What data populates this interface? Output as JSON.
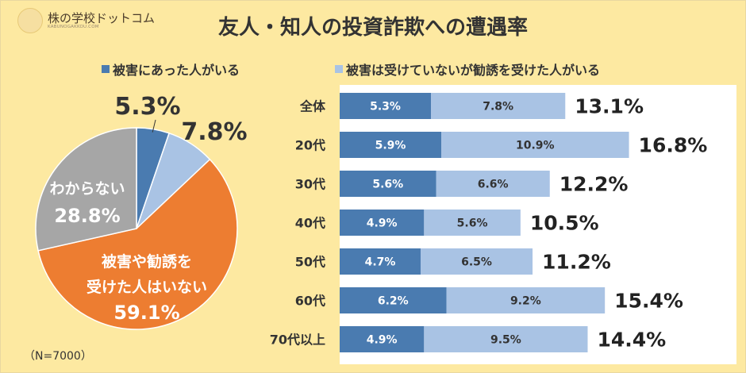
{
  "header": {
    "logo_text": "株の学校ドットコム",
    "logo_sub": "KABUNOGAKKOU.COM",
    "title": "友人・知人の投資詐欺への遭遇率"
  },
  "legend": {
    "victim": "被害にあった人がいる",
    "solicited": "被害は受けていないが勧誘を受けた人がいる"
  },
  "colors": {
    "victim": "#4a7bb0",
    "solicited": "#a9c3e4",
    "none": "#ed7d31",
    "unknown": "#a6a6a6",
    "background": "#fde9a1"
  },
  "note": "（N=7000）",
  "chart_data": [
    {
      "type": "pie",
      "slices": [
        {
          "label": "",
          "value": 5.3,
          "display": "5.3%",
          "color": "#4a7bb0"
        },
        {
          "label": "",
          "value": 7.8,
          "display": "7.8%",
          "color": "#a9c3e4"
        },
        {
          "label_lines": [
            "被害や勧誘を",
            "受けた人はいない"
          ],
          "value": 59.1,
          "display": "59.1%",
          "color": "#ed7d31"
        },
        {
          "label_lines": [
            "わからない"
          ],
          "value": 28.8,
          "display": "28.8%",
          "color": "#a6a6a6"
        }
      ]
    },
    {
      "type": "bar",
      "stacked": true,
      "orientation": "horizontal",
      "categories": [
        "全体",
        "20代",
        "30代",
        "40代",
        "50代",
        "60代",
        "70代以上"
      ],
      "series": [
        {
          "name": "被害にあった人がいる",
          "values": [
            5.3,
            5.9,
            5.6,
            4.9,
            4.7,
            6.2,
            4.9
          ],
          "labels": [
            "5.3%",
            "5.9%",
            "5.6%",
            "4.9%",
            "4.7%",
            "6.2%",
            "4.9%"
          ]
        },
        {
          "name": "被害は受けていないが勧誘を受けた人がいる",
          "values": [
            7.8,
            10.9,
            6.6,
            5.6,
            6.5,
            9.2,
            9.5
          ],
          "labels": [
            "7.8%",
            "10.9%",
            "6.6%",
            "5.6%",
            "6.5%",
            "9.2%",
            "9.5%"
          ]
        }
      ],
      "totals": [
        "13.1%",
        "16.8%",
        "12.2%",
        "10.5%",
        "11.2%",
        "15.4%",
        "14.4%"
      ]
    }
  ]
}
